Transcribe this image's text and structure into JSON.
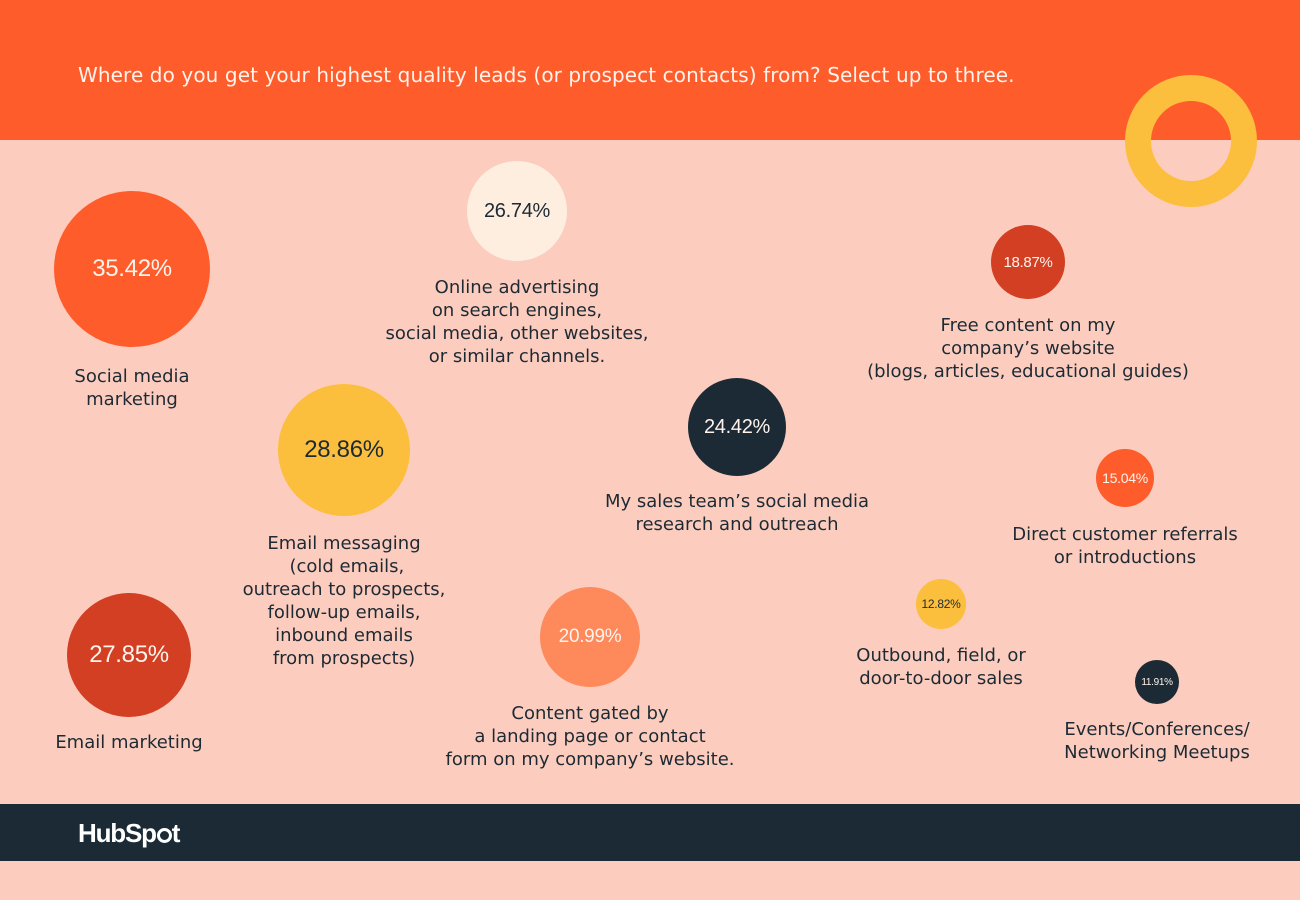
{
  "header": {
    "question": "Where do you get your highest quality leads (or prospect contacts) from? Select up to three."
  },
  "chart_data": {
    "type": "bubble",
    "points": [
      {
        "value": "35.42%",
        "num": 35.42,
        "label": "Social media\nmarketing",
        "color": "#fe5c2b",
        "text_color": "#fff3ec"
      },
      {
        "value": "26.74%",
        "num": 26.74,
        "label": "Online advertising\non search engines,\nsocial media, other websites,\nor similar channels.",
        "color": "#fdeee0",
        "text_color": "#1d2a33"
      },
      {
        "value": "18.87%",
        "num": 18.87,
        "label": "Free content on my\ncompany’s website\n(blogs, articles, educational guides)",
        "color": "#d23f22",
        "text_color": "#fff3ec"
      },
      {
        "value": "28.86%",
        "num": 28.86,
        "label": "Email messaging\n (cold emails,\noutreach to prospects,\nfollow-up emails,\ninbound emails\nfrom prospects)",
        "color": "#fcbe3d",
        "text_color": "#1d2a33"
      },
      {
        "value": "24.42%",
        "num": 24.42,
        "label": "My sales team’s social media\nresearch and outreach",
        "color": "#1c2a35",
        "text_color": "#fff3ec"
      },
      {
        "value": "15.04%",
        "num": 15.04,
        "label": "Direct customer referrals\nor introductions",
        "color": "#fe5c2b",
        "text_color": "#fff3ec"
      },
      {
        "value": "27.85%",
        "num": 27.85,
        "label": "Email marketing",
        "color": "#d23f22",
        "text_color": "#fff3ec"
      },
      {
        "value": "20.99%",
        "num": 20.99,
        "label": "Content gated by\na landing page or contact\nform on my company’s website.",
        "color": "#fe8a5c",
        "text_color": "#fff3ec"
      },
      {
        "value": "12.82%",
        "num": 12.82,
        "label": "Outbound, field, or\ndoor-to-door sales",
        "color": "#fcbe3d",
        "text_color": "#1d2a33"
      },
      {
        "value": "11.91%",
        "num": 11.91,
        "label": "Events/Conferences/\nNetworking Meetups",
        "color": "#1c2a35",
        "text_color": "#fff3ec"
      }
    ]
  },
  "footer": {
    "logo_text_a": "HubSp",
    "logo_text_b": "t"
  }
}
